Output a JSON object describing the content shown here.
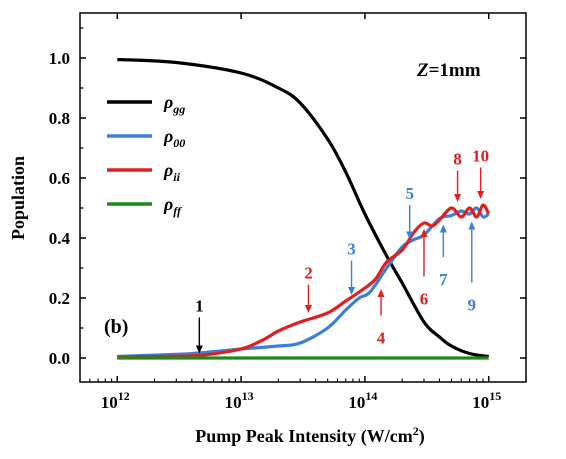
{
  "chart_data": {
    "type": "line",
    "title": "",
    "xlabel": "Pump Peak Intensity (W/cm",
    "xlabel_sup": "2",
    "xlabel_tail": ")",
    "ylabel": "Population",
    "xscale": "log",
    "xlim": [
      500000000000.0,
      2000000000000000.0
    ],
    "ylim": [
      -0.08,
      1.15
    ],
    "grid": false,
    "legend_position": "upper-left",
    "panel_label": "(b)",
    "condition_label": "=1mm",
    "condition_var": "Z",
    "x_ticks": [
      {
        "value": 1000000000000.0,
        "base": "10",
        "exp": "12"
      },
      {
        "value": 10000000000000.0,
        "base": "10",
        "exp": "13"
      },
      {
        "value": 100000000000000.0,
        "base": "10",
        "exp": "14"
      },
      {
        "value": 1000000000000000.0,
        "base": "10",
        "exp": "15"
      }
    ],
    "y_ticks": [
      {
        "value": 0.0,
        "label": "0.0"
      },
      {
        "value": 0.2,
        "label": "0.2"
      },
      {
        "value": 0.4,
        "label": "0.4"
      },
      {
        "value": 0.6,
        "label": "0.6"
      },
      {
        "value": 0.8,
        "label": "0.8"
      },
      {
        "value": 1.0,
        "label": "1.0"
      }
    ],
    "series": [
      {
        "name": "ρgg",
        "symbol": "ρ",
        "sub": "gg",
        "color": "#000000",
        "x": [
          1000000000000.0,
          3000000000000.0,
          10000000000000.0,
          20000000000000.0,
          30000000000000.0,
          50000000000000.0,
          70000000000000.0,
          100000000000000.0,
          150000000000000.0,
          200000000000000.0,
          300000000000000.0,
          400000000000000.0,
          500000000000000.0,
          700000000000000.0,
          1000000000000000.0
        ],
        "y": [
          0.995,
          0.985,
          0.95,
          0.9,
          0.85,
          0.73,
          0.62,
          0.48,
          0.34,
          0.25,
          0.12,
          0.07,
          0.04,
          0.015,
          0.005
        ]
      },
      {
        "name": "ρ00",
        "symbol": "ρ",
        "sub": "00",
        "color": "#3a7fd8",
        "x": [
          1000000000000.0,
          3000000000000.0,
          5000000000000.0,
          10000000000000.0,
          20000000000000.0,
          30000000000000.0,
          50000000000000.0,
          70000000000000.0,
          90000000000000.0,
          110000000000000.0,
          150000000000000.0,
          200000000000000.0,
          250000000000000.0,
          300000000000000.0,
          400000000000000.0,
          500000000000000.0,
          600000000000000.0,
          700000000000000.0,
          800000000000000.0,
          900000000000000.0,
          1000000000000000.0
        ],
        "y": [
          0.005,
          0.012,
          0.018,
          0.03,
          0.04,
          0.05,
          0.1,
          0.16,
          0.2,
          0.22,
          0.3,
          0.37,
          0.395,
          0.41,
          0.465,
          0.475,
          0.49,
          0.48,
          0.5,
          0.47,
          0.48
        ]
      },
      {
        "name": "ρii",
        "symbol": "ρ",
        "sub": "ii",
        "color": "#e02020",
        "x": [
          1000000000000.0,
          3000000000000.0,
          5000000000000.0,
          10000000000000.0,
          15000000000000.0,
          20000000000000.0,
          30000000000000.0,
          50000000000000.0,
          70000000000000.0,
          90000000000000.0,
          120000000000000.0,
          150000000000000.0,
          200000000000000.0,
          250000000000000.0,
          300000000000000.0,
          350000000000000.0,
          400000000000000.0,
          500000000000000.0,
          600000000000000.0,
          700000000000000.0,
          800000000000000.0,
          900000000000000.0,
          1000000000000000.0
        ],
        "y": [
          0.003,
          0.006,
          0.01,
          0.03,
          0.06,
          0.09,
          0.12,
          0.15,
          0.19,
          0.22,
          0.26,
          0.32,
          0.36,
          0.42,
          0.45,
          0.44,
          0.46,
          0.5,
          0.47,
          0.5,
          0.47,
          0.51,
          0.48
        ]
      },
      {
        "name": "ρff",
        "symbol": "ρ",
        "sub": "ff",
        "color": "#1a8a1a",
        "x": [
          1000000000000.0,
          1000000000000000.0
        ],
        "y": [
          0.0,
          0.0
        ]
      }
    ],
    "annotations": [
      {
        "label": "1",
        "color": "#000000",
        "x": 4600000000000.0,
        "y": 0.005,
        "direction": "down",
        "label_y": 0.155
      },
      {
        "label": "2",
        "color": "#e02020",
        "x": 35000000000000.0,
        "y": 0.14,
        "direction": "down",
        "label_y": 0.265
      },
      {
        "label": "3",
        "color": "#3a7fd8",
        "x": 78000000000000.0,
        "y": 0.2,
        "direction": "down",
        "label_y": 0.345
      },
      {
        "label": "4",
        "color": "#e02020",
        "x": 135000000000000.0,
        "y": 0.24,
        "direction": "up",
        "label_y": 0.095
      },
      {
        "label": "5",
        "color": "#3a7fd8",
        "x": 230000000000000.0,
        "y": 0.385,
        "direction": "down",
        "label_y": 0.53
      },
      {
        "label": "6",
        "color": "#e02020",
        "x": 300000000000000.0,
        "y": 0.44,
        "direction": "up",
        "label_y": 0.225
      },
      {
        "label": "7",
        "color": "#3a7fd8",
        "x": 430000000000000.0,
        "y": 0.455,
        "direction": "up",
        "label_y": 0.29
      },
      {
        "label": "8",
        "color": "#e02020",
        "x": 560000000000000.0,
        "y": 0.51,
        "direction": "down",
        "label_y": 0.645
      },
      {
        "label": "9",
        "color": "#3a7fd8",
        "x": 730000000000000.0,
        "y": 0.465,
        "direction": "up",
        "label_y": 0.205
      },
      {
        "label": "10",
        "color": "#e02020",
        "x": 860000000000000.0,
        "y": 0.52,
        "direction": "down",
        "label_y": 0.655
      }
    ]
  }
}
